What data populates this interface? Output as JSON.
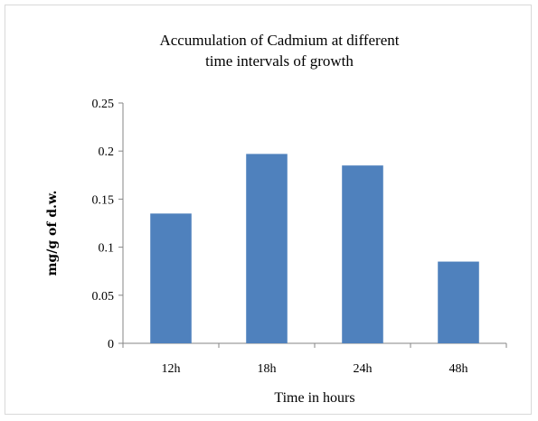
{
  "chart_data": {
    "type": "bar",
    "title": [
      "Accumulation of Cadmium at different",
      "time intervals of growth"
    ],
    "categories": [
      "12h",
      "18h",
      "24h",
      "48h"
    ],
    "values": [
      0.135,
      0.197,
      0.185,
      0.085
    ],
    "xlabel": "Time in hours",
    "ylabel": "mg/g of d.w.",
    "ylim": [
      0,
      0.25
    ],
    "yticks": [
      "0",
      "0.05",
      "0.1",
      "0.15",
      "0.2",
      "0.25"
    ],
    "grid": false,
    "legend": "none",
    "bar_color": "#4f81bd"
  }
}
